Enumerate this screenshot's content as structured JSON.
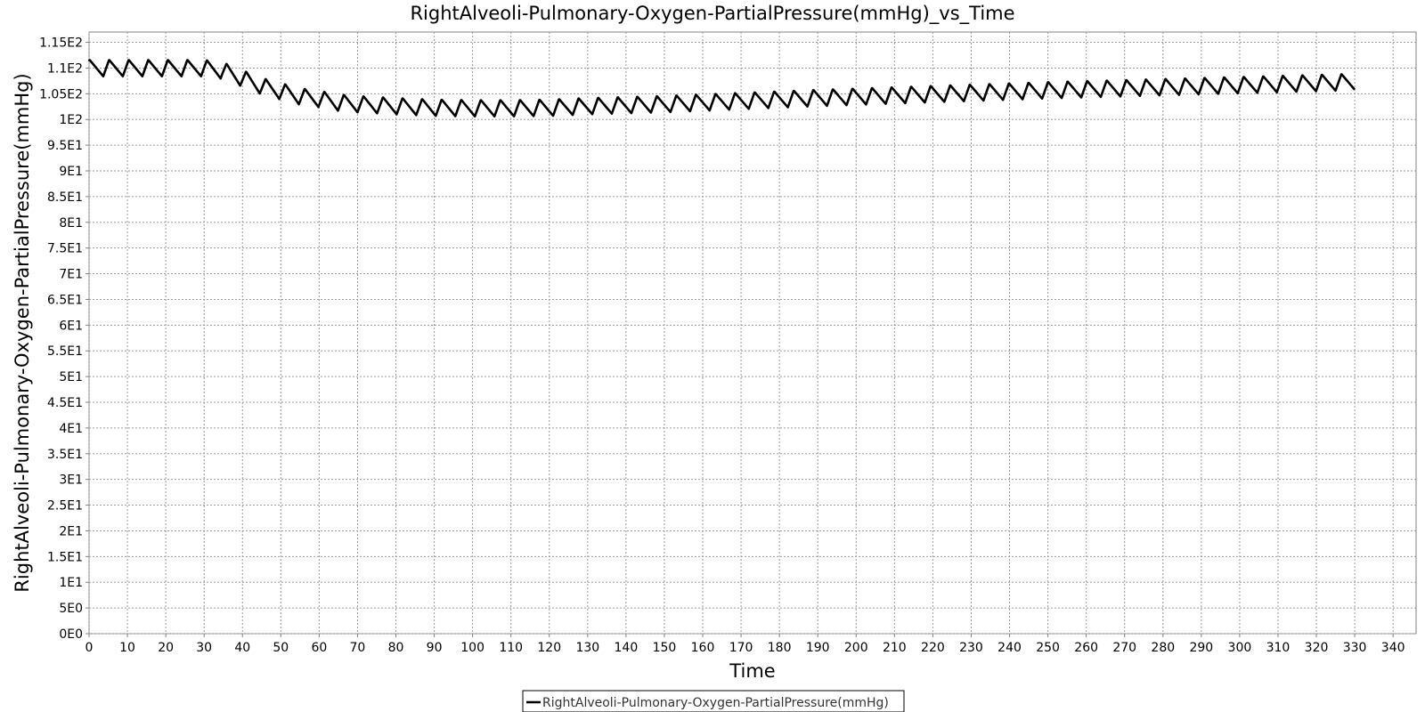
{
  "chart_data": {
    "type": "line",
    "title": "RightAlveoli-Pulmonary-Oxygen-PartialPressure(mmHg)_vs_Time",
    "xlabel": "Time",
    "ylabel": "RightAlveoli-Pulmonary-Oxygen-PartialPressure(mmHg)",
    "xlim": [
      0,
      346
    ],
    "ylim": [
      0,
      117
    ],
    "x_ticks": [
      0,
      10,
      20,
      30,
      40,
      50,
      60,
      70,
      80,
      90,
      100,
      110,
      120,
      130,
      140,
      150,
      160,
      170,
      180,
      190,
      200,
      210,
      220,
      230,
      240,
      250,
      260,
      270,
      280,
      290,
      300,
      310,
      320,
      330,
      340
    ],
    "x_tick_labels": [
      "0",
      "10",
      "20",
      "30",
      "40",
      "50",
      "60",
      "70",
      "80",
      "90",
      "100",
      "110",
      "120",
      "130",
      "140",
      "150",
      "160",
      "170",
      "180",
      "190",
      "200",
      "210",
      "220",
      "230",
      "240",
      "250",
      "260",
      "270",
      "280",
      "290",
      "300",
      "310",
      "320",
      "330",
      "340"
    ],
    "y_ticks": [
      0,
      5,
      10,
      15,
      20,
      25,
      30,
      35,
      40,
      45,
      50,
      55,
      60,
      65,
      70,
      75,
      80,
      85,
      90,
      95,
      100,
      105,
      110,
      115
    ],
    "y_tick_labels": [
      "0E0",
      "5E0",
      "1E1",
      "1.5E1",
      "2E1",
      "2.5E1",
      "3E1",
      "3.5E1",
      "4E1",
      "4.5E1",
      "5E1",
      "5.5E1",
      "6E1",
      "6.5E1",
      "7E1",
      "7.5E1",
      "8E1",
      "8.5E1",
      "9E1",
      "9.5E1",
      "1E2",
      "1.05E2",
      "1.1E2",
      "1.15E2"
    ],
    "grid": true,
    "legend": "bottom-center",
    "line_color": "#000000",
    "series": [
      {
        "name": "RightAlveoli-Pulmonary-Oxygen-PartialPressure(mmHg)",
        "oscillation_period": 5.1,
        "oscillation_amplitude": 3.2,
        "x_end": 330,
        "x": [
          0,
          10,
          20,
          30,
          35,
          40,
          45,
          50,
          55,
          60,
          65,
          70,
          80,
          90,
          100,
          110,
          120,
          130,
          150,
          170,
          190,
          210,
          230,
          250,
          270,
          290,
          310,
          330
        ],
        "y": [
          110,
          110,
          110,
          110,
          109.5,
          108,
          106.5,
          105.5,
          104.5,
          104,
          103.3,
          103,
          102.6,
          102.3,
          102.2,
          102.2,
          102.3,
          102.6,
          103,
          103.6,
          104.2,
          104.7,
          105.2,
          105.7,
          106.1,
          106.5,
          106.9,
          107.3
        ]
      }
    ]
  }
}
